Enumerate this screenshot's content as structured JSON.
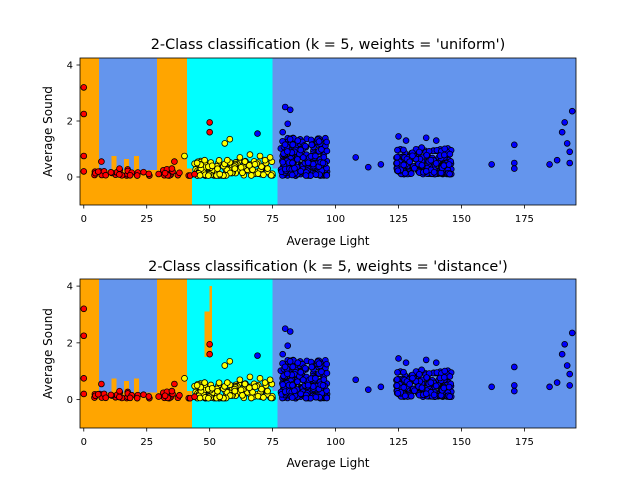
{
  "chart_data": [
    {
      "type": "scatter",
      "title": "2-Class classification (k = 5, weights = 'uniform')",
      "xlabel": "Average Light",
      "ylabel": "Average Sound",
      "xlim": [
        -1.5,
        195.5
      ],
      "ylim": [
        -1.0,
        4.25
      ],
      "xticks": [
        0,
        25,
        50,
        75,
        100,
        125,
        150,
        175
      ],
      "yticks": [
        0,
        2,
        4
      ],
      "grid": false,
      "legend": "none",
      "colors": {
        "region_a": "#ffa500",
        "region_b": "#00ffff",
        "region_c": "#6495ed",
        "point_a": "#ff0000",
        "point_b": "#ffff00",
        "point_c": "#0000ff"
      },
      "regions": [
        {
          "class": "c",
          "x0": -1.5,
          "x1": 195.5,
          "y0": -1.0,
          "y1": 4.25
        },
        {
          "class": "a",
          "x0": -1.5,
          "x1": 6,
          "y0": -1.0,
          "y1": 4.25
        },
        {
          "class": "a",
          "x0": 29,
          "x1": 41,
          "y0": -1.0,
          "y1": 4.25
        },
        {
          "class": "a",
          "x0": 41,
          "x1": 43,
          "y0": -1.0,
          "y1": 1.9
        },
        {
          "class": "a",
          "x0": 6,
          "x1": 51,
          "y0": -1.0,
          "y1": 0.25
        },
        {
          "class": "a",
          "x0": 11,
          "x1": 13,
          "y0": -1.0,
          "y1": 0.75
        },
        {
          "class": "a",
          "x0": 16,
          "x1": 18,
          "y0": -1.0,
          "y1": 0.65
        },
        {
          "class": "a",
          "x0": 20,
          "x1": 22,
          "y0": -1.0,
          "y1": 0.75
        },
        {
          "class": "b",
          "x0": 41,
          "x1": 75,
          "y0": 0.3,
          "y1": 4.25
        },
        {
          "class": "b",
          "x0": 43,
          "x1": 75,
          "y0": -1.0,
          "y1": 4.25
        },
        {
          "class": "b",
          "x0": 51,
          "x1": 77,
          "y0": -1.0,
          "y1": 0.3
        },
        {
          "class": "b",
          "x0": 75,
          "x1": 77,
          "y0": -1.0,
          "y1": 0.2
        }
      ],
      "points": [
        {
          "class": "a",
          "x": 0,
          "y": 3.2
        },
        {
          "class": "a",
          "x": 0,
          "y": 2.25
        },
        {
          "class": "a",
          "x": 0,
          "y": 0.75
        },
        {
          "class": "a",
          "x": 0,
          "y": 0.2
        },
        {
          "class": "a",
          "x": 7,
          "y": 0.55
        },
        {
          "class": "a",
          "x": 35,
          "y": 0.3
        },
        {
          "class": "a",
          "x": 36,
          "y": 0.55
        },
        {
          "class": "a",
          "x": 38,
          "y": 0.15
        },
        {
          "class": "a",
          "x": 50,
          "y": 1.95
        },
        {
          "class": "a",
          "x": 50,
          "y": 1.6
        },
        {
          "class": "a",
          "x": 44,
          "y": 0.1
        },
        {
          "class": "b",
          "x": 40,
          "y": 0.75
        },
        {
          "class": "b",
          "x": 45,
          "y": 0.5
        },
        {
          "class": "b",
          "x": 48,
          "y": 0.6
        },
        {
          "class": "b",
          "x": 51,
          "y": 0.4
        },
        {
          "class": "b",
          "x": 56,
          "y": 1.2
        },
        {
          "class": "b",
          "x": 58,
          "y": 1.35
        },
        {
          "class": "b",
          "x": 57,
          "y": 0.6
        },
        {
          "class": "b",
          "x": 60,
          "y": 0.3
        },
        {
          "class": "b",
          "x": 62,
          "y": 0.7
        },
        {
          "class": "b",
          "x": 64,
          "y": 0.55
        },
        {
          "class": "b",
          "x": 66,
          "y": 0.8
        },
        {
          "class": "b",
          "x": 68,
          "y": 0.45
        },
        {
          "class": "b",
          "x": 70,
          "y": 0.75
        },
        {
          "class": "b",
          "x": 72,
          "y": 0.6
        },
        {
          "class": "b",
          "x": 74,
          "y": 0.7
        },
        {
          "class": "b",
          "x": 73,
          "y": 0.3
        },
        {
          "class": "b",
          "x": 54,
          "y": 0.1
        },
        {
          "class": "b",
          "x": 63,
          "y": 0.15
        },
        {
          "class": "c",
          "x": 69,
          "y": 1.55
        },
        {
          "class": "c",
          "x": 80,
          "y": 2.5
        },
        {
          "class": "c",
          "x": 82,
          "y": 2.4
        },
        {
          "class": "c",
          "x": 79,
          "y": 1.6
        },
        {
          "class": "c",
          "x": 81,
          "y": 1.9
        },
        {
          "class": "c",
          "x": 85,
          "y": 1.3
        },
        {
          "class": "c",
          "x": 88,
          "y": 1.1
        },
        {
          "class": "c",
          "x": 92,
          "y": 0.75
        },
        {
          "class": "c",
          "x": 95,
          "y": 0.5
        },
        {
          "class": "c",
          "x": 108,
          "y": 0.7
        },
        {
          "class": "c",
          "x": 113,
          "y": 0.35
        },
        {
          "class": "c",
          "x": 118,
          "y": 0.45
        },
        {
          "class": "c",
          "x": 125,
          "y": 1.45
        },
        {
          "class": "c",
          "x": 128,
          "y": 1.3
        },
        {
          "class": "c",
          "x": 136,
          "y": 1.4
        },
        {
          "class": "c",
          "x": 140,
          "y": 1.3
        },
        {
          "class": "c",
          "x": 162,
          "y": 0.45
        },
        {
          "class": "c",
          "x": 171,
          "y": 1.15
        },
        {
          "class": "c",
          "x": 171,
          "y": 0.5
        },
        {
          "class": "c",
          "x": 171,
          "y": 0.3
        },
        {
          "class": "c",
          "x": 185,
          "y": 0.45
        },
        {
          "class": "c",
          "x": 188,
          "y": 0.6
        },
        {
          "class": "c",
          "x": 190,
          "y": 1.6
        },
        {
          "class": "c",
          "x": 191,
          "y": 1.95
        },
        {
          "class": "c",
          "x": 192,
          "y": 1.2
        },
        {
          "class": "c",
          "x": 193,
          "y": 0.9
        },
        {
          "class": "c",
          "x": 194,
          "y": 2.35
        },
        {
          "class": "c",
          "x": 193,
          "y": 0.5
        }
      ],
      "clusters": [
        {
          "class": "a",
          "x": [
            3,
            43
          ],
          "y": [
            0.05,
            0.3
          ],
          "n": 40,
          "seed": 11
        },
        {
          "class": "b",
          "x": [
            44,
            75
          ],
          "y": [
            0.05,
            0.6
          ],
          "n": 120,
          "seed": 23
        },
        {
          "class": "c",
          "x": [
            78,
            97
          ],
          "y": [
            0.05,
            1.4
          ],
          "n": 230,
          "seed": 37
        },
        {
          "class": "c",
          "x": [
            124,
            146
          ],
          "y": [
            0.1,
            1.05
          ],
          "n": 210,
          "seed": 53
        }
      ]
    },
    {
      "type": "scatter",
      "title": "2-Class classification (k = 5, weights = 'distance')",
      "xlabel": "Average Light",
      "ylabel": "Average Sound",
      "xlim": [
        -1.5,
        195.5
      ],
      "ylim": [
        -1.0,
        4.25
      ],
      "xticks": [
        0,
        25,
        50,
        75,
        100,
        125,
        150,
        175
      ],
      "yticks": [
        0,
        2,
        4
      ],
      "grid": false,
      "legend": "none",
      "colors": {
        "region_a": "#ffa500",
        "region_b": "#00ffff",
        "region_c": "#6495ed",
        "point_a": "#ff0000",
        "point_b": "#ffff00",
        "point_c": "#0000ff"
      },
      "regions": [
        {
          "class": "c",
          "x0": -1.5,
          "x1": 195.5,
          "y0": -1.0,
          "y1": 4.25
        },
        {
          "class": "a",
          "x0": -1.5,
          "x1": 6,
          "y0": -1.0,
          "y1": 4.25
        },
        {
          "class": "a",
          "x0": 29,
          "x1": 41,
          "y0": -1.0,
          "y1": 4.25
        },
        {
          "class": "a",
          "x0": 41,
          "x1": 43,
          "y0": -1.0,
          "y1": 1.9
        },
        {
          "class": "a",
          "x0": 6,
          "x1": 51,
          "y0": -1.0,
          "y1": 0.25
        },
        {
          "class": "a",
          "x0": 11,
          "x1": 13,
          "y0": -1.0,
          "y1": 0.75
        },
        {
          "class": "a",
          "x0": 16,
          "x1": 18,
          "y0": -1.0,
          "y1": 0.65
        },
        {
          "class": "a",
          "x0": 20,
          "x1": 22,
          "y0": -1.0,
          "y1": 0.75
        },
        {
          "class": "b",
          "x0": 41,
          "x1": 75,
          "y0": 0.3,
          "y1": 4.25
        },
        {
          "class": "b",
          "x0": 43,
          "x1": 75,
          "y0": -1.0,
          "y1": 4.25
        },
        {
          "class": "b",
          "x0": 51,
          "x1": 77,
          "y0": -1.0,
          "y1": 0.3
        },
        {
          "class": "b",
          "x0": 75,
          "x1": 77,
          "y0": -1.0,
          "y1": 0.2
        },
        {
          "class": "a",
          "x0": 48,
          "x1": 51,
          "y0": 1.5,
          "y1": 3.1
        },
        {
          "class": "a",
          "x0": 50,
          "x1": 51,
          "y0": 3.0,
          "y1": 4.0
        }
      ],
      "points": [
        {
          "class": "a",
          "x": 0,
          "y": 3.2
        },
        {
          "class": "a",
          "x": 0,
          "y": 2.25
        },
        {
          "class": "a",
          "x": 0,
          "y": 0.75
        },
        {
          "class": "a",
          "x": 0,
          "y": 0.2
        },
        {
          "class": "a",
          "x": 7,
          "y": 0.55
        },
        {
          "class": "a",
          "x": 35,
          "y": 0.3
        },
        {
          "class": "a",
          "x": 36,
          "y": 0.55
        },
        {
          "class": "a",
          "x": 38,
          "y": 0.15
        },
        {
          "class": "a",
          "x": 50,
          "y": 1.95
        },
        {
          "class": "a",
          "x": 50,
          "y": 1.6
        },
        {
          "class": "a",
          "x": 44,
          "y": 0.1
        },
        {
          "class": "b",
          "x": 40,
          "y": 0.75
        },
        {
          "class": "b",
          "x": 45,
          "y": 0.5
        },
        {
          "class": "b",
          "x": 48,
          "y": 0.6
        },
        {
          "class": "b",
          "x": 51,
          "y": 0.4
        },
        {
          "class": "b",
          "x": 56,
          "y": 1.2
        },
        {
          "class": "b",
          "x": 58,
          "y": 1.35
        },
        {
          "class": "b",
          "x": 57,
          "y": 0.6
        },
        {
          "class": "b",
          "x": 60,
          "y": 0.3
        },
        {
          "class": "b",
          "x": 62,
          "y": 0.7
        },
        {
          "class": "b",
          "x": 64,
          "y": 0.55
        },
        {
          "class": "b",
          "x": 66,
          "y": 0.8
        },
        {
          "class": "b",
          "x": 68,
          "y": 0.45
        },
        {
          "class": "b",
          "x": 70,
          "y": 0.75
        },
        {
          "class": "b",
          "x": 72,
          "y": 0.6
        },
        {
          "class": "b",
          "x": 74,
          "y": 0.7
        },
        {
          "class": "b",
          "x": 73,
          "y": 0.3
        },
        {
          "class": "b",
          "x": 54,
          "y": 0.1
        },
        {
          "class": "b",
          "x": 63,
          "y": 0.15
        },
        {
          "class": "c",
          "x": 69,
          "y": 1.55
        },
        {
          "class": "c",
          "x": 80,
          "y": 2.5
        },
        {
          "class": "c",
          "x": 82,
          "y": 2.4
        },
        {
          "class": "c",
          "x": 79,
          "y": 1.6
        },
        {
          "class": "c",
          "x": 81,
          "y": 1.9
        },
        {
          "class": "c",
          "x": 85,
          "y": 1.3
        },
        {
          "class": "c",
          "x": 88,
          "y": 1.1
        },
        {
          "class": "c",
          "x": 92,
          "y": 0.75
        },
        {
          "class": "c",
          "x": 95,
          "y": 0.5
        },
        {
          "class": "c",
          "x": 108,
          "y": 0.7
        },
        {
          "class": "c",
          "x": 113,
          "y": 0.35
        },
        {
          "class": "c",
          "x": 118,
          "y": 0.45
        },
        {
          "class": "c",
          "x": 125,
          "y": 1.45
        },
        {
          "class": "c",
          "x": 128,
          "y": 1.3
        },
        {
          "class": "c",
          "x": 136,
          "y": 1.4
        },
        {
          "class": "c",
          "x": 140,
          "y": 1.3
        },
        {
          "class": "c",
          "x": 162,
          "y": 0.45
        },
        {
          "class": "c",
          "x": 171,
          "y": 1.15
        },
        {
          "class": "c",
          "x": 171,
          "y": 0.5
        },
        {
          "class": "c",
          "x": 171,
          "y": 0.3
        },
        {
          "class": "c",
          "x": 185,
          "y": 0.45
        },
        {
          "class": "c",
          "x": 188,
          "y": 0.6
        },
        {
          "class": "c",
          "x": 190,
          "y": 1.6
        },
        {
          "class": "c",
          "x": 191,
          "y": 1.95
        },
        {
          "class": "c",
          "x": 192,
          "y": 1.2
        },
        {
          "class": "c",
          "x": 193,
          "y": 0.9
        },
        {
          "class": "c",
          "x": 194,
          "y": 2.35
        },
        {
          "class": "c",
          "x": 193,
          "y": 0.5
        }
      ],
      "clusters": [
        {
          "class": "a",
          "x": [
            3,
            43
          ],
          "y": [
            0.05,
            0.3
          ],
          "n": 40,
          "seed": 11
        },
        {
          "class": "b",
          "x": [
            44,
            75
          ],
          "y": [
            0.05,
            0.6
          ],
          "n": 120,
          "seed": 23
        },
        {
          "class": "c",
          "x": [
            78,
            97
          ],
          "y": [
            0.05,
            1.4
          ],
          "n": 230,
          "seed": 37
        },
        {
          "class": "c",
          "x": [
            124,
            146
          ],
          "y": [
            0.1,
            1.05
          ],
          "n": 210,
          "seed": 53
        }
      ]
    }
  ]
}
